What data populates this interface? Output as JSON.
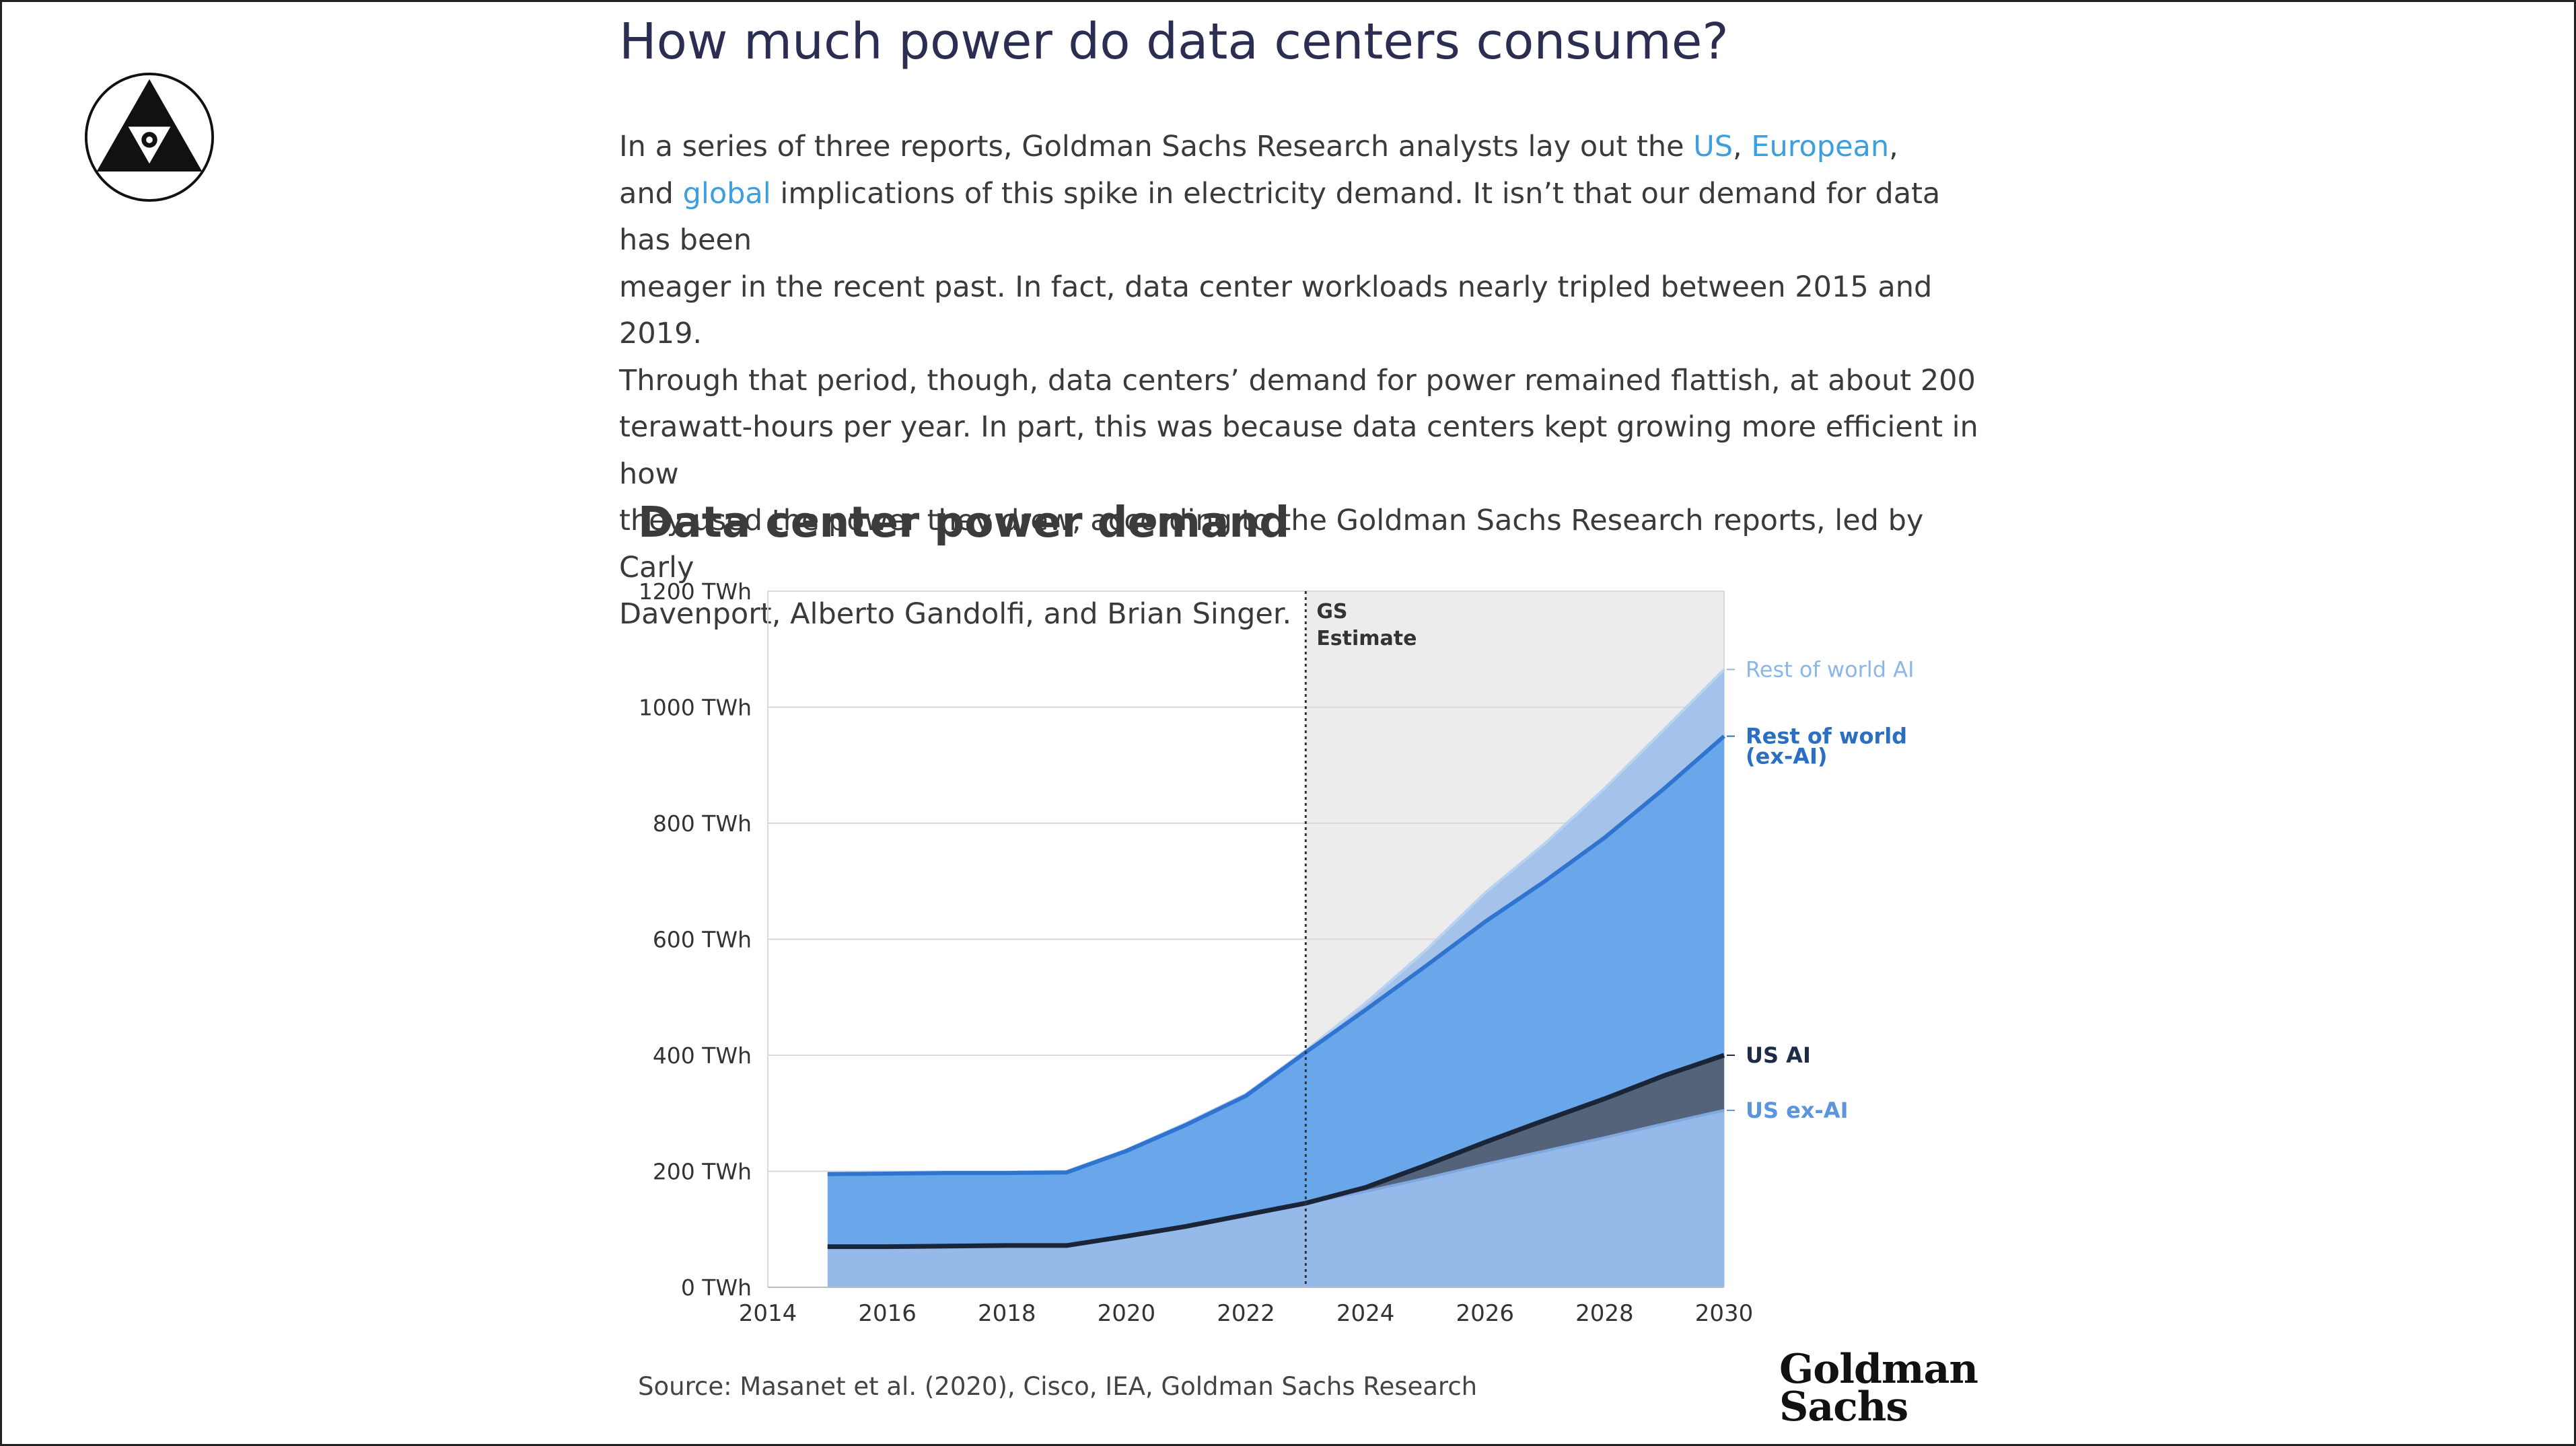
{
  "article": {
    "title": "How much power do data centers consume?",
    "body": {
      "p1": "In a series of three reports, Goldman Sachs Research analysts lay out the ",
      "link_us": "US",
      "sep1": ", ",
      "link_european": "European",
      "sep2": ",",
      "p2": "and ",
      "link_global": "global",
      "p3": " implications of this spike in electricity demand. It isn’t that our demand for data has been",
      "lines": [
        "meager in the recent past. In fact, data center workloads nearly tripled between 2015 and 2019.",
        "Through that period, though, data centers’ demand for power remained flattish, at about 200",
        "terawatt-hours per year. In part, this was because data centers kept growing more efficient in how",
        "they used the power they drew, according to the Goldman Sachs Research reports, led by Carly",
        "Davenport, Alberto Gandolfi, and Brian Singer."
      ]
    }
  },
  "chart_data": {
    "type": "area",
    "title": "Data center power demand",
    "stacked": true,
    "y_unit": "TWh",
    "ylim": [
      0,
      1200
    ],
    "xlim": [
      2014,
      2030
    ],
    "x_ticks": [
      2014,
      2016,
      2018,
      2020,
      2022,
      2024,
      2026,
      2028,
      2030
    ],
    "y_ticks": [
      0,
      200,
      400,
      600,
      800,
      1000,
      1200
    ],
    "y_tick_labels": [
      "0 TWh",
      "200 TWh",
      "400 TWh",
      "600 TWh",
      "800 TWh",
      "1000 TWh",
      "1200 TWh"
    ],
    "grid": "horizontal",
    "estimate_start": 2023,
    "estimate_label": [
      "GS",
      "Estimate"
    ],
    "x": [
      2015,
      2016,
      2017,
      2018,
      2019,
      2020,
      2021,
      2022,
      2023,
      2024,
      2025,
      2026,
      2027,
      2028,
      2029,
      2030
    ],
    "series": [
      {
        "name": "US ex-AI",
        "color": "#95b9e8",
        "label_color": "#5a95dd",
        "cumulative": [
          70,
          70,
          71,
          72,
          72,
          88,
          105,
          125,
          145,
          165,
          188,
          212,
          235,
          258,
          282,
          305
        ]
      },
      {
        "name": "US AI",
        "color": "#55637a",
        "label_color": "#1e2b45",
        "cumulative": [
          70,
          70,
          71,
          72,
          72,
          88,
          105,
          125,
          145,
          172,
          210,
          250,
          288,
          325,
          365,
          400
        ]
      },
      {
        "name": "Rest of world (ex-AI)",
        "color": "#5f97dd",
        "label_color": "#2a6fc4",
        "cumulative": [
          195,
          196,
          197,
          197,
          198,
          235,
          280,
          330,
          405,
          478,
          553,
          630,
          700,
          775,
          860,
          950
        ]
      },
      {
        "name": "Rest of world AI",
        "color": "#a5c3ea",
        "label_color": "#8ab7e6",
        "cumulative": [
          197,
          198,
          199,
          199,
          200,
          237,
          283,
          333,
          408,
          490,
          580,
          680,
          765,
          860,
          962,
          1065
        ]
      }
    ],
    "source": "Source: Masanet et al. (2020), Cisco, IEA, Goldman Sachs Research"
  },
  "brand": {
    "line1": "Goldman",
    "line2": "Sachs"
  },
  "colors": {
    "link": "#3d9ee0",
    "title": "#2b2d52",
    "estimate_shade": "#ececec",
    "base_fill": "#6aa7ea"
  }
}
